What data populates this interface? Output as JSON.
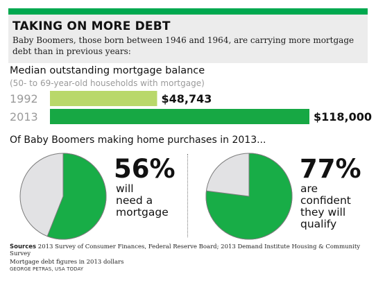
{
  "colors": {
    "rule": "#00a84f",
    "band": "#ececec",
    "bar_1992": "#b9d86a",
    "bar_2013": "#17a844",
    "pie_fill": "#18ad47",
    "pie_rest": "#e2e2e4",
    "pie_stroke": "#7b7b7b"
  },
  "header": {
    "title": "TAKING ON MORE DEBT",
    "subtitle": "Baby Boomers, those born between 1946 and 1964, are carrying more mortgage debt than in previous years:"
  },
  "bars_section": {
    "title": "Median outstanding mortgage balance",
    "note": "(50- to 69-year-old households with mortgage)"
  },
  "pies_section": {
    "title": "Of Baby Boomers making home purchases in 2013..."
  },
  "chart_data": [
    {
      "type": "bar",
      "orientation": "horizontal",
      "categories": [
        "1992",
        "2013"
      ],
      "values": [
        48743,
        118000
      ],
      "value_labels": [
        "$48,743",
        "$118,000"
      ],
      "xlim": [
        0,
        118000
      ],
      "grid": false
    },
    {
      "type": "pie",
      "value": 56,
      "value_label": "56%",
      "text": "will\nneed a\nmortgage"
    },
    {
      "type": "pie",
      "value": 77,
      "value_label": "77%",
      "text": "are\nconfident\nthey will\nqualify"
    }
  ],
  "footer": {
    "sources_label": "Sources",
    "sources_text": " 2013 Survey of Consumer Finances, Federal Reserve Board; 2013 Demand Institute Housing & Community Survey",
    "note": "Mortgage debt figures in 2013 dollars",
    "credit": "GEORGE PETRAS, USA TODAY"
  }
}
